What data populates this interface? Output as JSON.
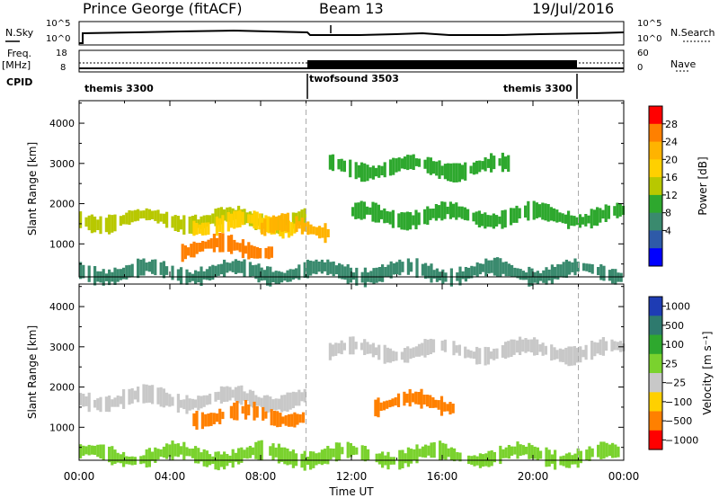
{
  "header": {
    "radar": "Prince George (fitACF)",
    "beam": "Beam 13",
    "date": "19/Jul/2016"
  },
  "top_panel": {
    "nsky_label": "N.Sky",
    "nsearch_label": "N.Search",
    "left_ticks": [
      "10^5",
      "10^0"
    ],
    "right_ticks": [
      "10^5",
      "10^0"
    ],
    "freq_label_line1": "Freq.",
    "freq_label_line2": "[MHz]",
    "freq_ticks": [
      "18",
      "8"
    ],
    "nave_label": "Nave",
    "nave_ticks": [
      "60",
      "0"
    ],
    "cpid_label": "CPID",
    "cpid_segments": [
      "themis 3300",
      "twofsound 3503",
      "themis 3300"
    ]
  },
  "power_panel": {
    "ylabel": "Slant Range [km]",
    "colorbar_label": "Power [dB]",
    "colorbar_ticks": [
      "28",
      "24",
      "20",
      "16",
      "12",
      "8",
      "4"
    ],
    "colorbar_colors": [
      "#ff0000",
      "#ff8000",
      "#ffb300",
      "#ffd000",
      "#b8c800",
      "#2ea82e",
      "#3a8a6e",
      "#2e5aa8",
      "#0000ff"
    ]
  },
  "velocity_panel": {
    "ylabel": "Slant Range [km]",
    "colorbar_label": "Velocity [m s⁻¹]",
    "colorbar_ticks": [
      "1000",
      "500",
      "100",
      "25",
      "−25",
      "−100",
      "−500",
      "−1000"
    ],
    "colorbar_colors": [
      "#1e3cb4",
      "#2e7a6e",
      "#2ea82e",
      "#7ad22e",
      "#c8c8c8",
      "#ffd000",
      "#ff8000",
      "#ff0000"
    ]
  },
  "x_axis": {
    "label": "Time UT",
    "ticks": [
      "00:00",
      "04:00",
      "08:00",
      "12:00",
      "16:00",
      "20:00",
      "00:00"
    ]
  },
  "y_ticks": [
    "4000",
    "3000",
    "2000",
    "1000"
  ],
  "chart_data": [
    {
      "type": "heatmap",
      "title": "Power",
      "xlabel": "Time UT",
      "ylabel": "Slant Range [km]",
      "xlim": [
        0,
        24
      ],
      "ylim": [
        180,
        4560
      ],
      "colorbar": {
        "label": "Power [dB]",
        "range": [
          0,
          30
        ],
        "ticks": [
          4,
          8,
          12,
          16,
          20,
          24,
          28
        ]
      },
      "bands": [
        {
          "range_km": 1600,
          "t_start": 0,
          "t_end": 10,
          "value_db": 14
        },
        {
          "range_km": 1500,
          "t_start": 5,
          "t_end": 9.5,
          "value_db": 20
        },
        {
          "range_km": 900,
          "t_start": 4.5,
          "t_end": 8.5,
          "value_db": 28
        },
        {
          "range_km": 1400,
          "t_start": 8,
          "t_end": 11,
          "value_db": 22
        },
        {
          "range_km": 1700,
          "t_start": 12,
          "t_end": 24,
          "value_db": 12
        },
        {
          "range_km": 2900,
          "t_start": 11,
          "t_end": 19,
          "value_db": 12
        },
        {
          "range_km": 300,
          "t_start": 0,
          "t_end": 24,
          "value_db": 6
        }
      ]
    },
    {
      "type": "heatmap",
      "title": "Velocity",
      "xlabel": "Time UT",
      "ylabel": "Slant Range [km]",
      "xlim": [
        0,
        24
      ],
      "ylim": [
        180,
        4560
      ],
      "colorbar": {
        "label": "Velocity [m s⁻¹]",
        "range": [
          -1000,
          1000
        ],
        "ticks": [
          1000,
          500,
          100,
          25,
          -25,
          -100,
          -500,
          -1000
        ]
      },
      "bands": [
        {
          "range_km": 1700,
          "t_start": 0,
          "t_end": 10,
          "value_ms": 0
        },
        {
          "range_km": 1300,
          "t_start": 5,
          "t_end": 10,
          "value_ms": -150
        },
        {
          "range_km": 1600,
          "t_start": 13,
          "t_end": 16.5,
          "value_ms": -200
        },
        {
          "range_km": 2900,
          "t_start": 11,
          "t_end": 24,
          "value_ms": 0
        },
        {
          "range_km": 300,
          "t_start": 0,
          "t_end": 24,
          "value_ms": 60
        }
      ]
    }
  ]
}
